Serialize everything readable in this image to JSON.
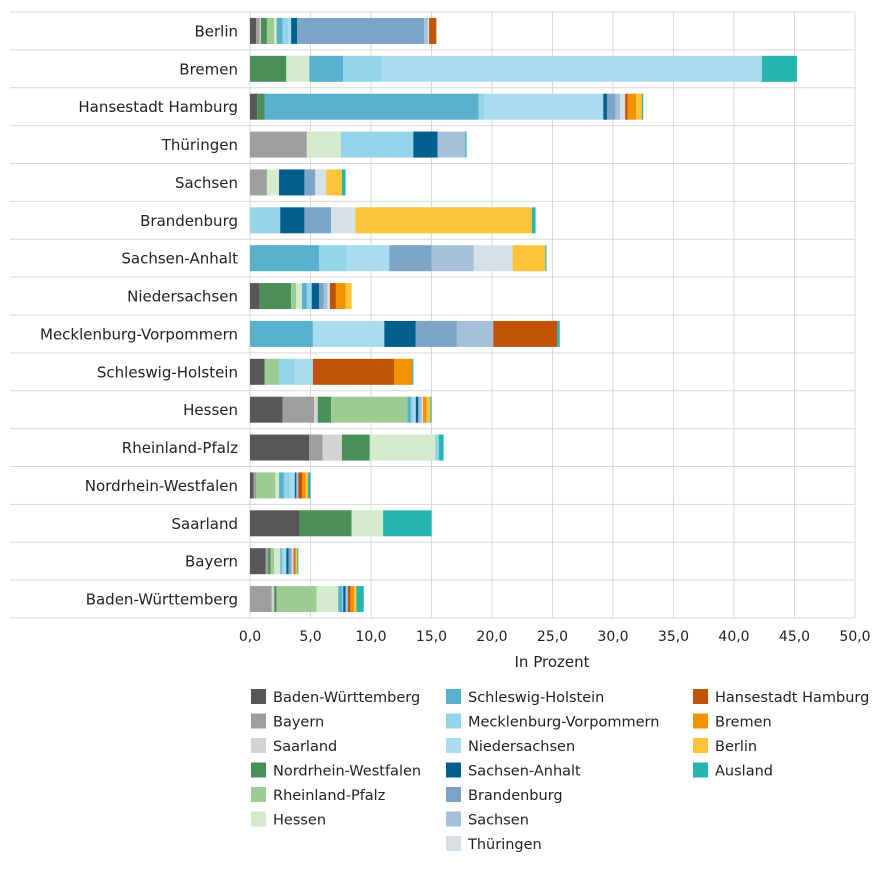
{
  "chart_data": {
    "type": "bar",
    "orientation": "horizontal",
    "stacked": true,
    "xlabel": "In Prozent",
    "xlim": [
      0,
      50
    ],
    "xticks": [
      0,
      5,
      10,
      15,
      20,
      25,
      30,
      35,
      40,
      45,
      50
    ],
    "xtick_labels": [
      "0,0",
      "5,0",
      "10,0",
      "15,0",
      "20,0",
      "25,0",
      "30,0",
      "35,0",
      "40,0",
      "45,0",
      "50,0"
    ],
    "grid": true,
    "legend_position": "bottom",
    "categories": [
      "Berlin",
      "Bremen",
      "Hansestadt Hamburg",
      "Thüringen",
      "Sachsen",
      "Brandenburg",
      "Sachsen-Anhalt",
      "Niedersachsen",
      "Mecklenburg-Vorpommern",
      "Schleswig-Holstein",
      "Hessen",
      "Rheinland-Pfalz",
      "Nordrhein-Westfalen",
      "Saarland",
      "Bayern",
      "Baden-Württemberg"
    ],
    "series": [
      {
        "name": "Baden-Württemberg",
        "color": "#575757",
        "values": [
          0.5,
          0,
          0.6,
          0,
          0,
          0,
          0,
          0.8,
          0,
          1.2,
          2.7,
          4.9,
          0.3,
          4.1,
          1.3,
          0
        ]
      },
      {
        "name": "Bayern",
        "color": "#9e9e9e",
        "values": [
          0.3,
          0,
          0,
          4.7,
          1.4,
          0,
          0,
          0,
          0,
          0,
          2.6,
          1.1,
          0.2,
          0,
          0.2,
          1.8
        ]
      },
      {
        "name": "Saarland",
        "color": "#d4d4d4",
        "values": [
          0.1,
          0,
          0,
          0,
          0,
          0,
          0,
          0,
          0,
          0,
          0.3,
          1.6,
          0,
          0,
          0,
          0.2
        ]
      },
      {
        "name": "Nordrhein-Westfalen",
        "color": "#4a8f57",
        "values": [
          0.5,
          3.0,
          0.6,
          0,
          0,
          0,
          0,
          2.6,
          0,
          0,
          1.1,
          2.3,
          0,
          4.3,
          0.2,
          0.2
        ]
      },
      {
        "name": "Rheinland-Pfalz",
        "color": "#9ccc91",
        "values": [
          0.6,
          0,
          0,
          0,
          0,
          0,
          0,
          0.4,
          0,
          1.2,
          6.3,
          0,
          1.6,
          0,
          0.3,
          3.3
        ]
      },
      {
        "name": "Hessen",
        "color": "#d4eacc",
        "values": [
          0.2,
          1.9,
          0,
          2.8,
          1.0,
          0,
          0,
          0.5,
          0,
          0,
          0,
          5.4,
          0.3,
          2.6,
          0.5,
          1.8
        ]
      },
      {
        "name": "Schleswig-Holstein",
        "color": "#57b1cc",
        "values": [
          0.5,
          2.8,
          17.7,
          0,
          0,
          0,
          5.7,
          0.4,
          5.2,
          0,
          0.3,
          0,
          0.4,
          0,
          0.1,
          0.3
        ]
      },
      {
        "name": "Mecklenburg-Vorpommern",
        "color": "#93d4e8",
        "values": [
          0.5,
          3.2,
          0.5,
          6.0,
          0,
          2.5,
          2.3,
          0.4,
          0,
          1.3,
          0.2,
          0.3,
          0.5,
          0,
          0.2,
          0.1
        ]
      },
      {
        "name": "Niedersachsen",
        "color": "#aadcf0",
        "values": [
          0.2,
          31.4,
          9.8,
          0,
          0,
          0,
          3.5,
          0,
          5.9,
          1.5,
          0.2,
          0,
          0.4,
          0,
          0.2,
          0
        ]
      },
      {
        "name": "Sachsen-Anhalt",
        "color": "#015f8e",
        "values": [
          0.5,
          0,
          0.3,
          2.0,
          2.1,
          2.0,
          0,
          0.6,
          2.6,
          0,
          0.2,
          0,
          0.1,
          0,
          0.2,
          0.2
        ]
      },
      {
        "name": "Brandenburg",
        "color": "#7ba4c7",
        "values": [
          10.5,
          0,
          0.7,
          0,
          0.9,
          2.2,
          3.5,
          0.4,
          3.4,
          0,
          0.1,
          0,
          0.1,
          0,
          0.2,
          0
        ]
      },
      {
        "name": "Sachsen",
        "color": "#a6c0d9",
        "values": [
          0.3,
          0,
          0.4,
          2.3,
          0,
          0,
          3.5,
          0.3,
          3.0,
          0,
          0.2,
          0,
          0.1,
          0,
          0.1,
          0.2
        ]
      },
      {
        "name": "Thüringen",
        "color": "#d6e0e8",
        "values": [
          0.1,
          0,
          0.4,
          0,
          0.9,
          2.0,
          3.2,
          0.2,
          0,
          0,
          0.1,
          0,
          0,
          0,
          0.1,
          0
        ]
      },
      {
        "name": "Hansestadt Hamburg",
        "color": "#c05305",
        "values": [
          0.6,
          0,
          0.2,
          0,
          0,
          0,
          0,
          0.5,
          5.3,
          6.7,
          0,
          0,
          0.3,
          0,
          0.1,
          0.2
        ]
      },
      {
        "name": "Bremen",
        "color": "#f39200",
        "values": [
          0,
          0,
          0.7,
          0,
          0,
          0,
          0,
          0.8,
          0,
          1.5,
          0.3,
          0,
          0.3,
          0,
          0.1,
          0.3
        ]
      },
      {
        "name": "Berlin",
        "color": "#fdc43a",
        "values": [
          0,
          0,
          0.5,
          0,
          1.3,
          14.6,
          2.7,
          0.5,
          0,
          0,
          0.3,
          0,
          0.2,
          0,
          0.1,
          0.2
        ]
      },
      {
        "name": "Ausland",
        "color": "#25b5b1",
        "values": [
          0,
          2.9,
          0.1,
          0.1,
          0.3,
          0.3,
          0.1,
          0,
          0.2,
          0.1,
          0.1,
          0.4,
          0.2,
          4.0,
          0.1,
          0.6
        ]
      }
    ]
  }
}
